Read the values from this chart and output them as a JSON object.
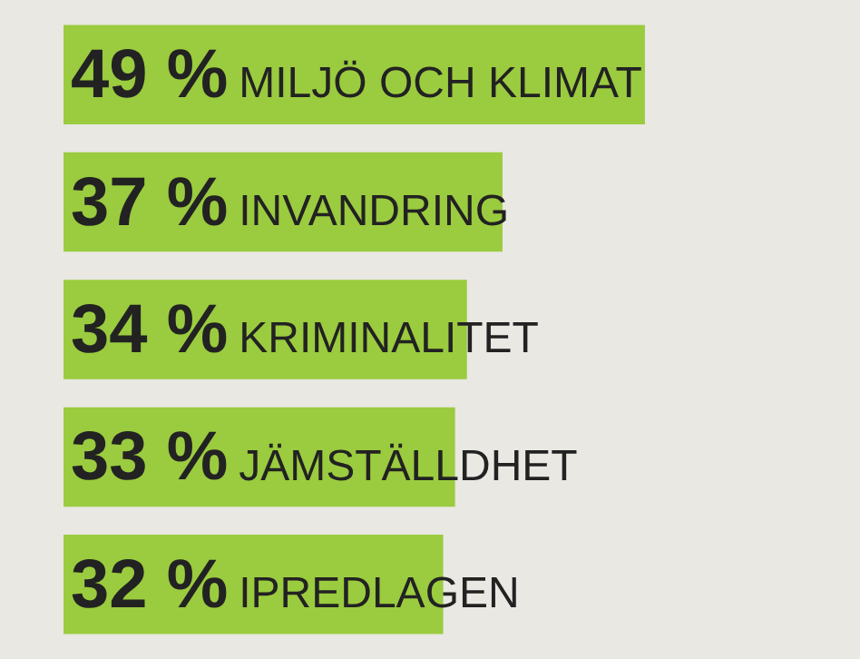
{
  "chart_data": {
    "type": "bar",
    "orientation": "horizontal",
    "categories": [
      "MILJÖ OCH KLIMAT",
      "INVANDRING",
      "KRIMINALITET",
      "JÄMSTÄLLDHET",
      "IPREDLAGEN"
    ],
    "values": [
      49,
      37,
      34,
      33,
      32
    ],
    "value_labels": [
      "49 %",
      "37 %",
      "34 %",
      "33 %",
      "32 %"
    ],
    "color": "#9bcb3f"
  }
}
